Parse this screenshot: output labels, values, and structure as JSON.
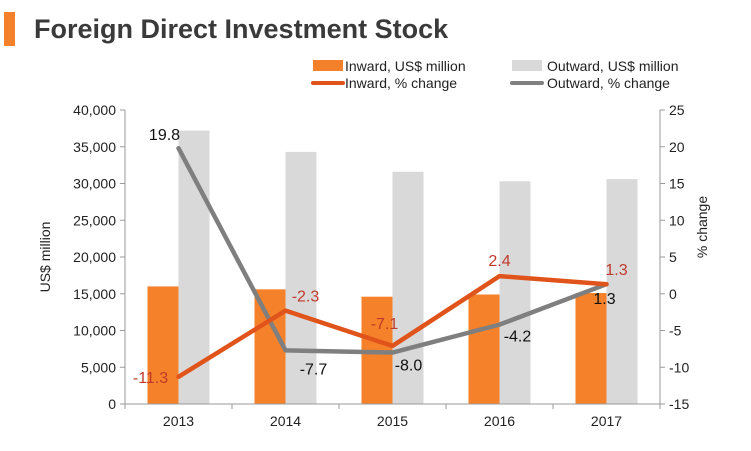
{
  "title": "Foreign Direct Investment Stock",
  "colors": {
    "accent": "#f5822a",
    "inward_bar": "#f5822a",
    "outward_bar": "#d9d9d9",
    "inward_line": "#e0541b",
    "outward_line": "#7f7f7f",
    "inward_label": "#c0392b"
  },
  "chart_data": {
    "type": "bar",
    "categories": [
      "2013",
      "2014",
      "2015",
      "2016",
      "2017"
    ],
    "series": [
      {
        "name": "Inward, US$ million",
        "type": "bar",
        "axis": "left",
        "values": [
          16000,
          15600,
          14600,
          14900,
          15100
        ]
      },
      {
        "name": "Outward, US$ million",
        "type": "bar",
        "axis": "left",
        "values": [
          37200,
          34300,
          31600,
          30300,
          30600
        ]
      },
      {
        "name": "Inward, % change",
        "type": "line",
        "axis": "right",
        "values": [
          -11.3,
          -2.3,
          -7.1,
          2.4,
          1.3
        ],
        "labels": [
          "-11.3",
          "-2.3",
          "-7.1",
          "2.4",
          "1.3"
        ]
      },
      {
        "name": "Outward, % change",
        "type": "line",
        "axis": "right",
        "values": [
          19.8,
          -7.7,
          -8.0,
          -4.2,
          1.3
        ],
        "labels": [
          "19.8",
          "-7.7",
          "-8.0",
          "-4.2",
          "1.3"
        ]
      }
    ],
    "ylabel": "US$ million",
    "y2label": "% change",
    "ylim": [
      0,
      40000
    ],
    "y2lim": [
      -15,
      25
    ],
    "yticks": [
      "0",
      "5,000",
      "10,000",
      "15,000",
      "20,000",
      "25,000",
      "30,000",
      "35,000",
      "40,000"
    ],
    "y2ticks": [
      "-15",
      "-10",
      "-5",
      "0",
      "5",
      "10",
      "15",
      "20",
      "25"
    ],
    "legend_position": "top",
    "grid": false
  }
}
